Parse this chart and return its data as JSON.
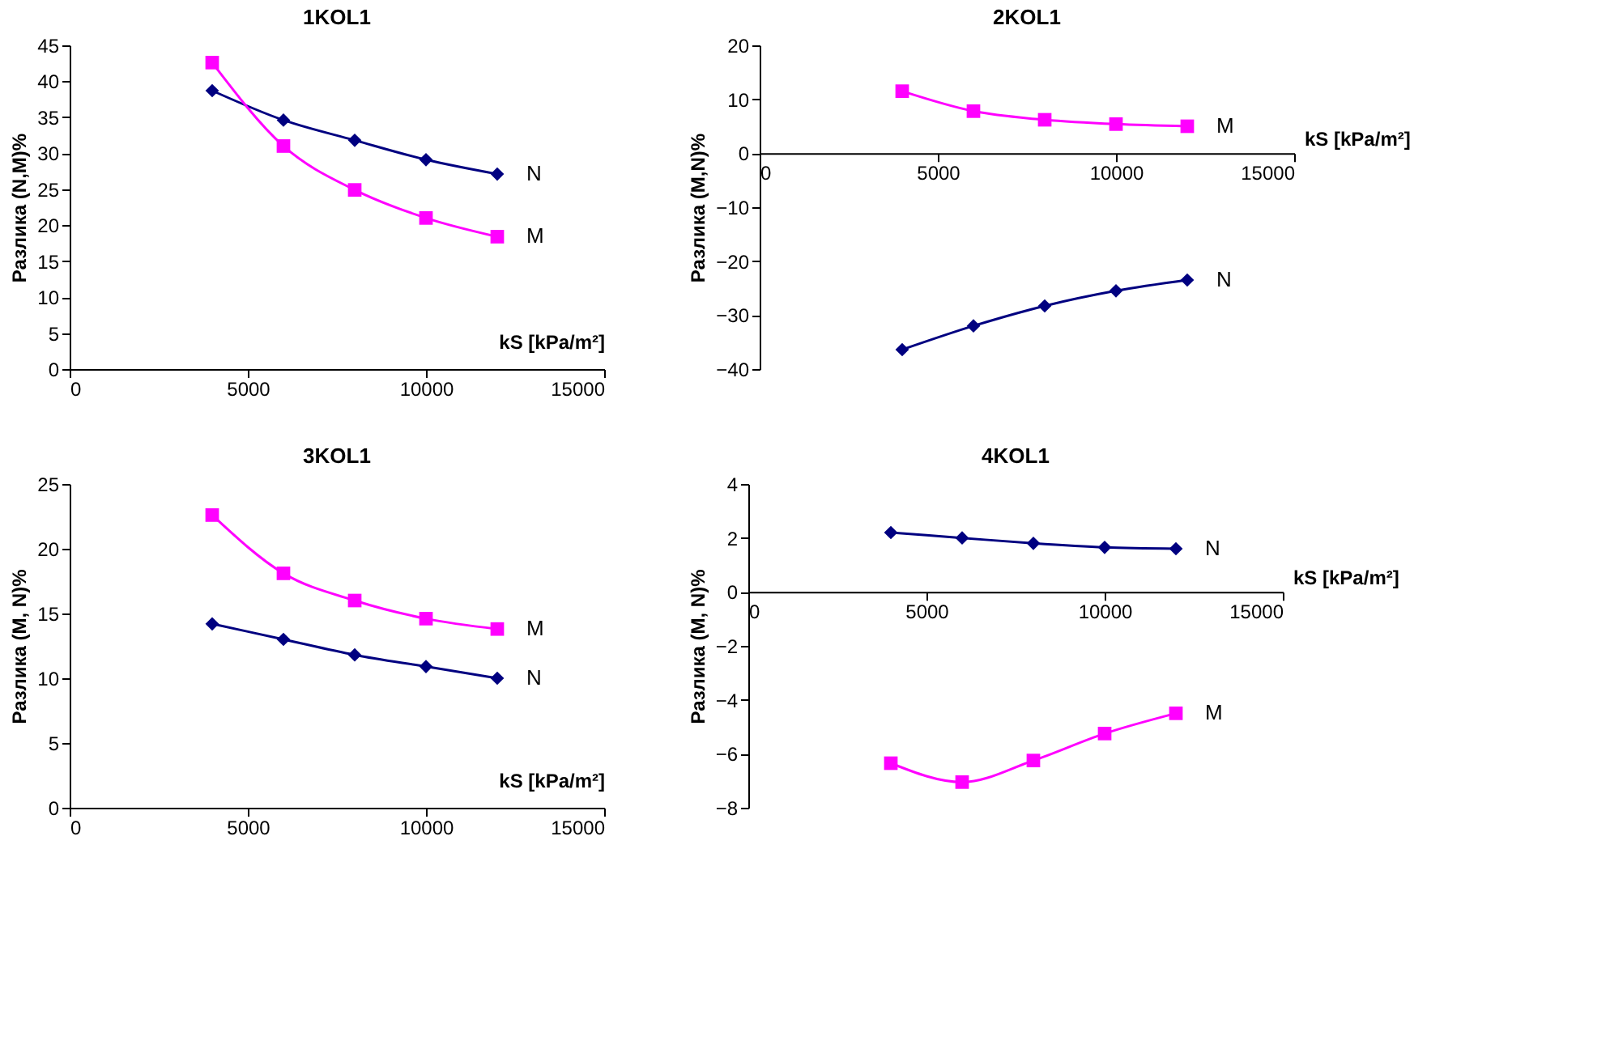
{
  "chart_data": [
    {
      "type": "line",
      "title": "1KOL1",
      "xlabel": "kS [kPa/m²]",
      "ylabel": "Разлика (N,M)%",
      "x": [
        4000,
        6000,
        8000,
        10000,
        12000
      ],
      "xlim": [
        0,
        15000
      ],
      "xticks": [
        0,
        5000,
        10000,
        15000
      ],
      "ylim": [
        0,
        45
      ],
      "yticks": [
        0,
        5,
        10,
        15,
        20,
        25,
        30,
        35,
        40,
        45
      ],
      "grid": false,
      "legend": false,
      "line_style": "solid",
      "series": [
        {
          "name": "N",
          "color": "#000080",
          "marker": "diamond",
          "values": [
            38.7,
            34.6,
            31.8,
            29.1,
            27.1
          ]
        },
        {
          "name": "M",
          "color": "#ff00ff",
          "marker": "square",
          "values": [
            42.6,
            31.0,
            24.9,
            21.0,
            18.4
          ]
        }
      ]
    },
    {
      "type": "line",
      "title": "2KOL1",
      "xlabel": "kS [kPa/m²]",
      "ylabel": "Разлика (M,N)%",
      "x": [
        4000,
        6000,
        8000,
        10000,
        12000
      ],
      "xlim": [
        0,
        15000
      ],
      "xticks": [
        0,
        5000,
        10000,
        15000
      ],
      "ylim": [
        -40,
        20
      ],
      "yticks": [
        -40,
        -30,
        -20,
        -10,
        0,
        10,
        20
      ],
      "grid": false,
      "legend": false,
      "line_style": "solid",
      "series": [
        {
          "name": "M",
          "color": "#ff00ff",
          "marker": "square",
          "values": [
            11.5,
            7.8,
            6.2,
            5.4,
            5.0
          ]
        },
        {
          "name": "N",
          "color": "#000080",
          "marker": "diamond",
          "values": [
            -36.4,
            -32.0,
            -28.3,
            -25.5,
            -23.5
          ]
        }
      ]
    },
    {
      "type": "line",
      "title": "3KOL1",
      "xlabel": "kS [kPa/m²]",
      "ylabel": "Разлика (M, N)%",
      "x": [
        4000,
        6000,
        8000,
        10000,
        12000
      ],
      "xlim": [
        0,
        15000
      ],
      "xticks": [
        0,
        5000,
        10000,
        15000
      ],
      "ylim": [
        0,
        25
      ],
      "yticks": [
        0,
        5,
        10,
        15,
        20,
        25
      ],
      "grid": false,
      "legend": false,
      "line_style": "solid",
      "series": [
        {
          "name": "M",
          "color": "#ff00ff",
          "marker": "square",
          "values": [
            22.6,
            18.1,
            16.0,
            14.6,
            13.8
          ]
        },
        {
          "name": "N",
          "color": "#000080",
          "marker": "diamond",
          "values": [
            14.2,
            13.0,
            11.8,
            10.9,
            10.0
          ]
        }
      ]
    },
    {
      "type": "line",
      "title": "4KOL1",
      "xlabel": "kS [kPa/m²]",
      "ylabel": "Разлика (M, N)%",
      "x": [
        4000,
        6000,
        8000,
        10000,
        12000
      ],
      "xlim": [
        0,
        15000
      ],
      "xticks": [
        0,
        5000,
        10000,
        15000
      ],
      "ylim": [
        -8,
        4
      ],
      "yticks": [
        -8,
        -6,
        -4,
        -2,
        0,
        2,
        4
      ],
      "grid": false,
      "legend": false,
      "line_style": "solid",
      "series": [
        {
          "name": "N",
          "color": "#000080",
          "marker": "diamond",
          "values": [
            2.2,
            2.0,
            1.8,
            1.65,
            1.6
          ]
        },
        {
          "name": "M",
          "color": "#ff00ff",
          "marker": "square",
          "values": [
            -6.35,
            -7.05,
            -6.25,
            -5.25,
            -4.5
          ]
        }
      ]
    }
  ]
}
